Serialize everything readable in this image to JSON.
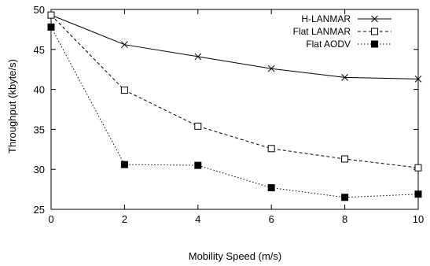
{
  "chart_data": {
    "type": "line",
    "title": "",
    "xlabel": "Mobility Speed (m/s)",
    "ylabel": "Throughput (kbyte/s)",
    "xlim": [
      0,
      10
    ],
    "ylim": [
      25,
      50
    ],
    "x_ticks": [
      0,
      2,
      4,
      6,
      8,
      10
    ],
    "y_ticks": [
      25,
      30,
      35,
      40,
      45,
      50
    ],
    "x": [
      0,
      2,
      4,
      6,
      8,
      10
    ],
    "grid": false,
    "legend_position": "top-right",
    "series": [
      {
        "name": "H-LANMAR",
        "values": [
          49.3,
          45.6,
          44.1,
          42.6,
          41.5,
          41.3
        ],
        "line_style": "solid",
        "marker": "cross"
      },
      {
        "name": "Flat LANMAR",
        "values": [
          49.3,
          39.9,
          35.4,
          32.6,
          31.3,
          30.2
        ],
        "line_style": "dashed",
        "marker": "open-square"
      },
      {
        "name": "Flat AODV",
        "values": [
          47.8,
          30.6,
          30.5,
          27.7,
          26.5,
          26.9
        ],
        "line_style": "dotted",
        "marker": "filled-square"
      }
    ]
  }
}
